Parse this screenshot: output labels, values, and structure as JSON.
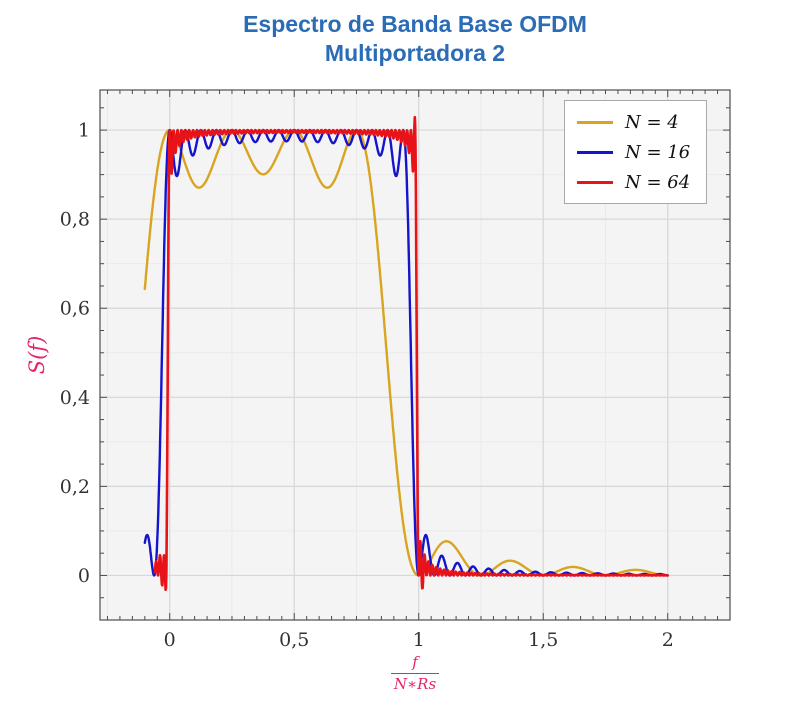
{
  "title": {
    "line1": "Espectro de Banda Base OFDM",
    "line2": "Multiportadora 2",
    "color": "#2a6cb5"
  },
  "axes": {
    "ylabel": "S(f)",
    "xlabel_numerator": "f",
    "xlabel_denominator": "N∗Rs",
    "label_color": "#e5266e",
    "xlim": [
      -0.28,
      2.25
    ],
    "ylim": [
      -0.1,
      1.09
    ],
    "x_ticks": [
      {
        "v": 0,
        "label": "0"
      },
      {
        "v": 0.5,
        "label": "0,5"
      },
      {
        "v": 1,
        "label": "1"
      },
      {
        "v": 1.5,
        "label": "1,5"
      },
      {
        "v": 2,
        "label": "2"
      }
    ],
    "y_ticks": [
      {
        "v": 0,
        "label": "0"
      },
      {
        "v": 0.2,
        "label": "0,2"
      },
      {
        "v": 0.4,
        "label": "0,4"
      },
      {
        "v": 0.6,
        "label": "0,6"
      },
      {
        "v": 0.8,
        "label": "0,8"
      },
      {
        "v": 1,
        "label": "1"
      }
    ],
    "x_minor_tick": 0.05,
    "y_minor_tick": 0.05,
    "x_minor_grid": 0.25,
    "y_minor_grid": 0.1,
    "plot_bg": "#f4f4f4",
    "grid_major": "#d7d7d7",
    "grid_minor": "#eaeaea",
    "frame_color": "#4d4d4d",
    "tick_color": "#4d4d4d",
    "tick_label_color": "#333333"
  },
  "legend": {
    "items": [
      {
        "label": "N = 4",
        "color": "#d9a521"
      },
      {
        "label": "N = 16",
        "color": "#1414cc"
      },
      {
        "label": "N = 64",
        "color": "#e81219"
      }
    ]
  },
  "chart_data": {
    "type": "line",
    "title": "Espectro de Banda Base OFDM — Multiportadora 2",
    "xlabel": "f/(N*Rs)",
    "ylabel": "S(f)",
    "xlim": [
      -0.28,
      2.25
    ],
    "ylim": [
      -0.1,
      1.09
    ],
    "x_tick_labels": [
      "0",
      "0,5",
      "1",
      "1,5",
      "2"
    ],
    "y_tick_labels": [
      "0",
      "0,2",
      "0,4",
      "0,6",
      "0,8",
      "1"
    ],
    "grid": true,
    "legend_position": "top-right",
    "model": "S(u)=sum_{k=0}^{N-1} sinc^2(N*u-k), sinc(x)=sin(pi*x)/(pi*x), u=f/(N*Rs); flat passband ~1 over 0<=u<=1, edge sharpness and ripple depth depend on N",
    "sample_step": 0.0015,
    "series": [
      {
        "id": "N4",
        "name": "N = 4",
        "color": "#d9a521",
        "N": 4,
        "x_start": -0.1,
        "x_end": 2.0,
        "width": 2.4,
        "inband_ripple_min": 0.87,
        "keypoints": [
          [
            -0.1,
            0.64
          ],
          [
            -0.05,
            0.91
          ],
          [
            0,
            1
          ],
          [
            0.125,
            0.87
          ],
          [
            0.25,
            1
          ],
          [
            0.375,
            0.9
          ],
          [
            0.5,
            1
          ],
          [
            0.625,
            0.9
          ],
          [
            0.75,
            1
          ],
          [
            0.875,
            0.48
          ],
          [
            1,
            0
          ],
          [
            1.1,
            0.075
          ],
          [
            1.25,
            0
          ],
          [
            1.35,
            0.032
          ],
          [
            1.5,
            0
          ],
          [
            1.62,
            0.018
          ],
          [
            1.75,
            0
          ],
          [
            1.87,
            0.011
          ],
          [
            2,
            0
          ]
        ]
      },
      {
        "id": "N16",
        "name": "N = 16",
        "color": "#1414cc",
        "N": 16,
        "x_start": -0.1,
        "x_end": 2.0,
        "width": 2.4,
        "inband_ripple_min": 0.955,
        "keypoints": [
          [
            -0.1,
            0.07
          ],
          [
            -0.0625,
            0
          ],
          [
            -0.031,
            0.48
          ],
          [
            0,
            1
          ],
          [
            0.031,
            0.9
          ],
          [
            0.0625,
            1
          ],
          [
            0.25,
            0.97
          ],
          [
            0.5,
            0.98
          ],
          [
            0.75,
            0.97
          ],
          [
            0.9375,
            1
          ],
          [
            0.969,
            0.9
          ],
          [
            1,
            0
          ],
          [
            1.035,
            0.07
          ],
          [
            1.0625,
            0
          ],
          [
            1.1,
            0.03
          ],
          [
            1.25,
            0.01
          ],
          [
            1.5,
            0
          ],
          [
            2,
            0
          ]
        ]
      },
      {
        "id": "N64",
        "name": "N = 64",
        "color": "#e81219",
        "N": 64,
        "x_start": -0.06,
        "x_end": 2.0,
        "width": 2.6,
        "inband_ripple_min": 0.99,
        "artifacts": [
          {
            "center": -0.022,
            "sigma": 0.01,
            "amp": -0.05
          },
          {
            "center": 0.984,
            "sigma": 0.005,
            "amp": 0.03
          },
          {
            "center": 1.012,
            "sigma": 0.006,
            "amp": -0.04
          }
        ],
        "keypoints": [
          [
            -0.06,
            0.01
          ],
          [
            -0.023,
            0.03
          ],
          [
            -0.016,
            -0.035
          ],
          [
            -0.008,
            0.45
          ],
          [
            0,
            1
          ],
          [
            0.008,
            0.9
          ],
          [
            0.5,
            0.99
          ],
          [
            0.976,
            0.9
          ],
          [
            0.984,
            1.02
          ],
          [
            1,
            0
          ],
          [
            1.012,
            -0.03
          ],
          [
            1.023,
            0.03
          ],
          [
            1.1,
            0.01
          ],
          [
            1.25,
            0
          ],
          [
            2,
            0
          ]
        ]
      }
    ]
  }
}
